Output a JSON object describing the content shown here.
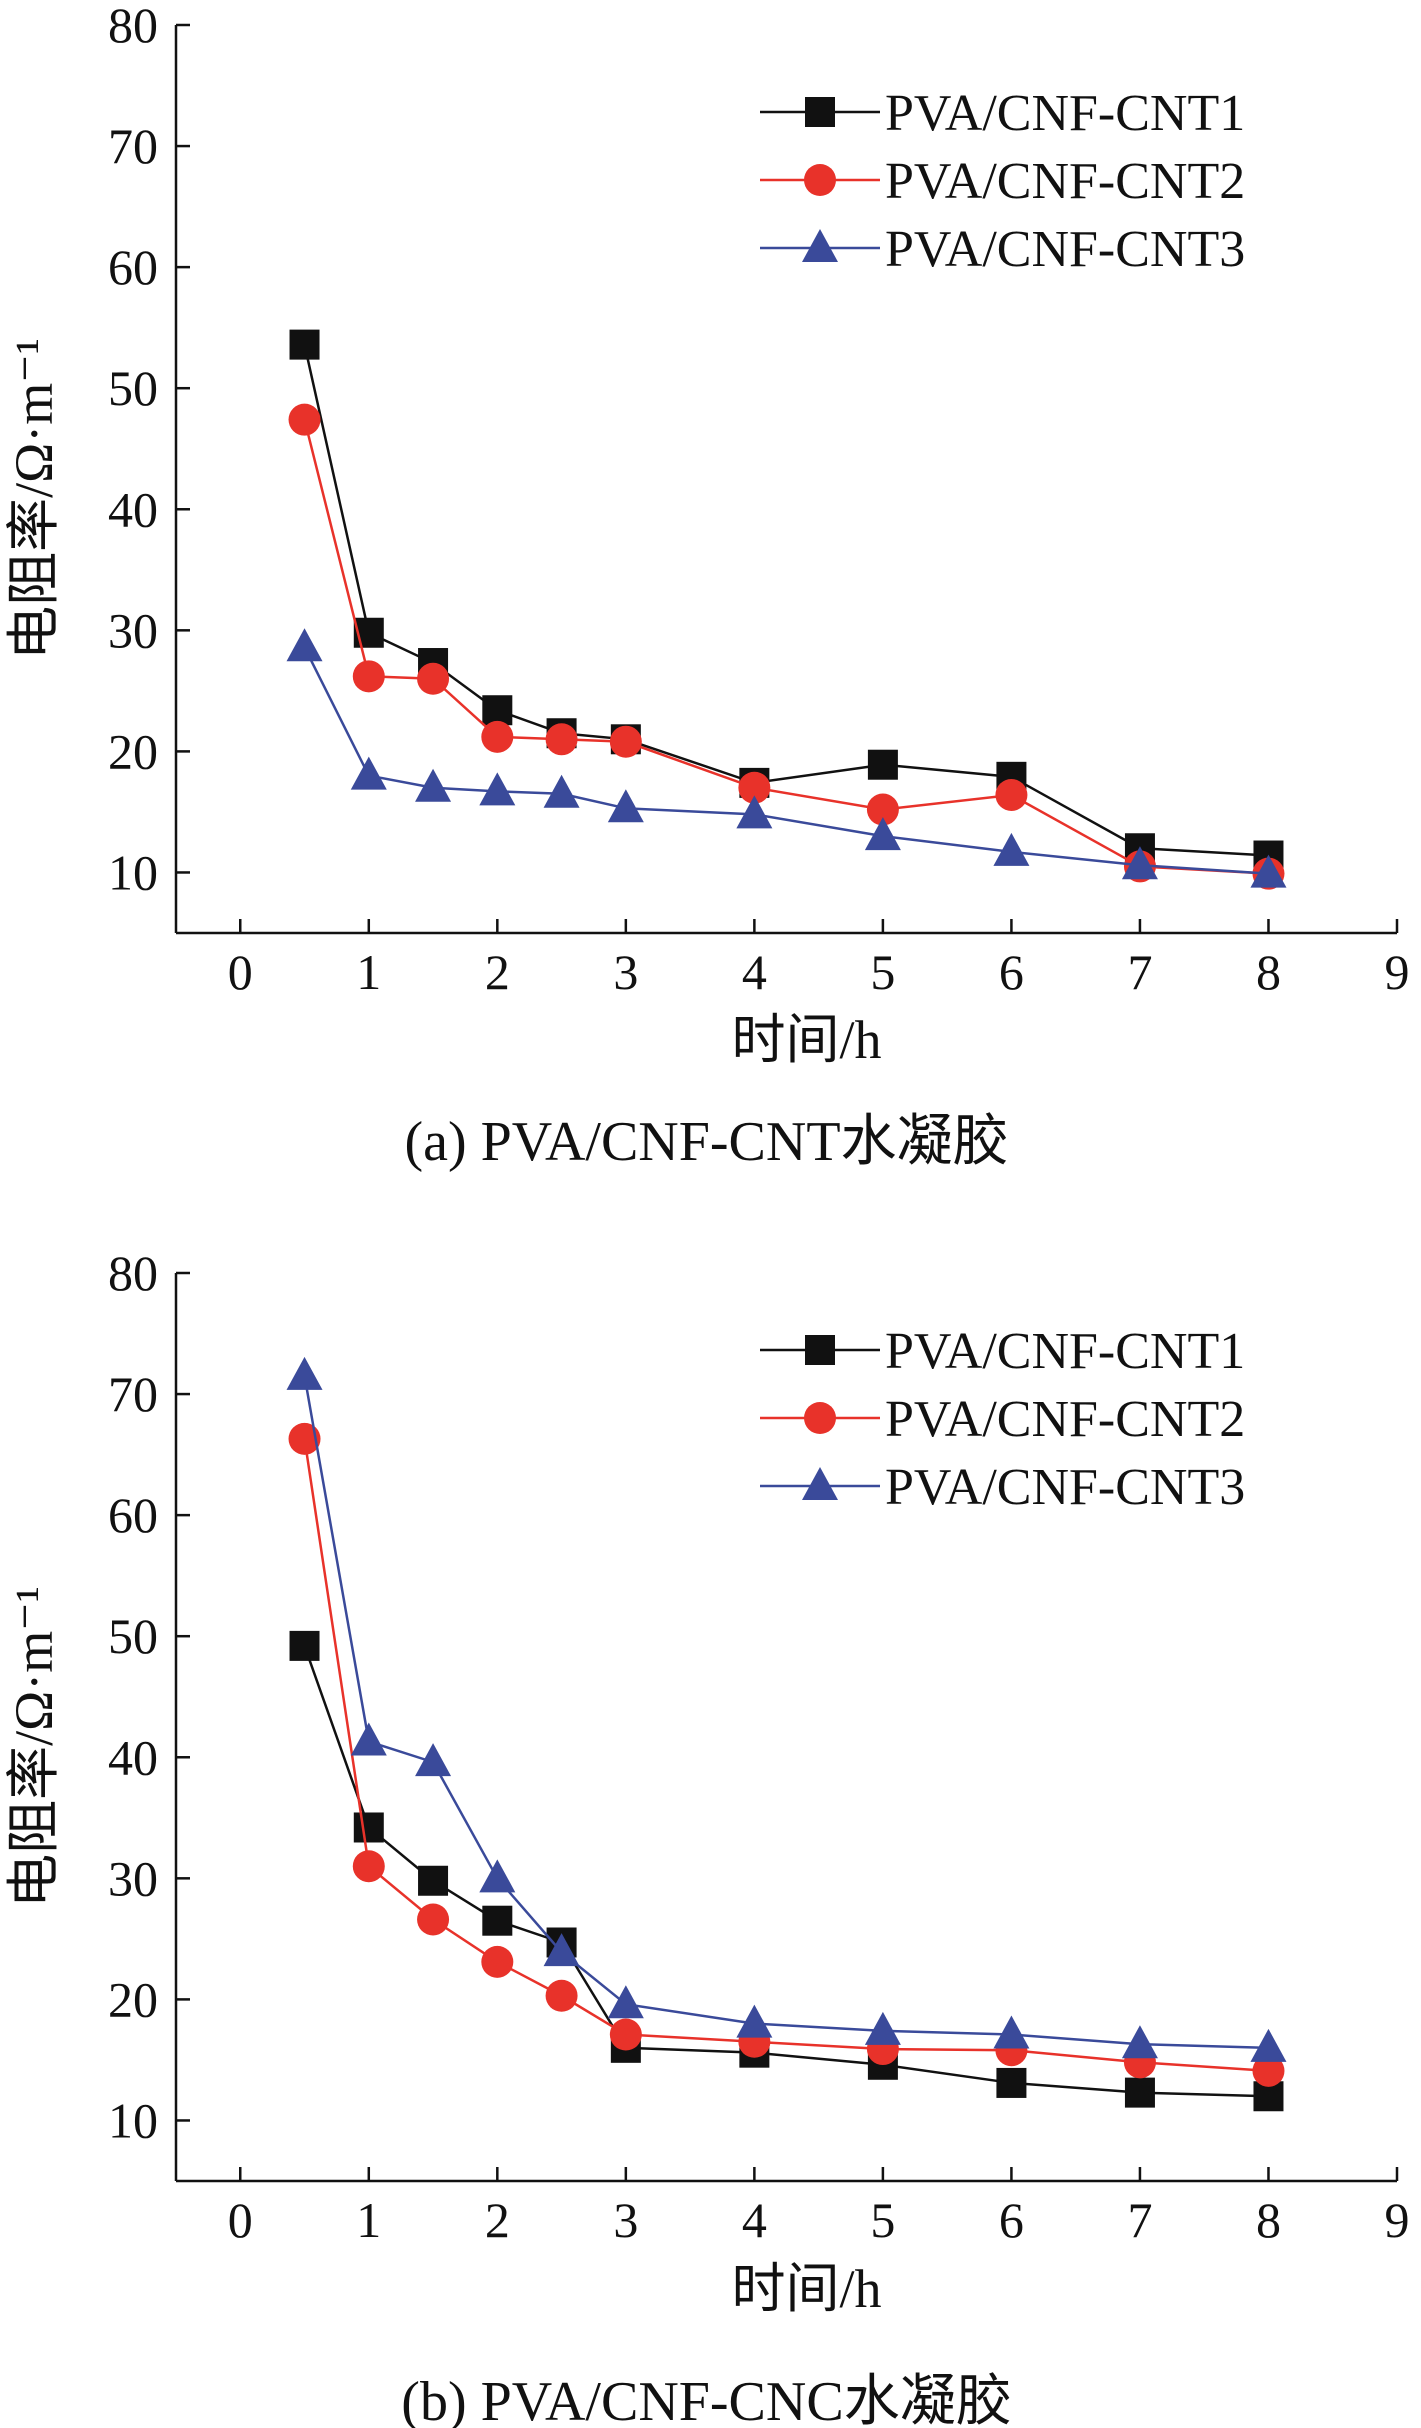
{
  "colors": {
    "series1": "#111111",
    "series2": "#e8322a",
    "series3": "#3a4a9a",
    "axis": "#111111"
  },
  "chart_data": [
    {
      "type": "line",
      "caption": "(a) PVA/CNF-CNT水凝胶",
      "xlabel": "时间/h",
      "ylabel": "电阻率/Ω·m⁻¹",
      "xlim": [
        -0.5,
        9
      ],
      "ylim": [
        5,
        80
      ],
      "xticks": [
        0,
        1,
        2,
        3,
        4,
        5,
        6,
        7,
        8,
        9
      ],
      "yticks": [
        10,
        20,
        30,
        40,
        50,
        60,
        70,
        80
      ],
      "legend_position": "top-right",
      "series": [
        {
          "name": "PVA/CNF-CNT1",
          "marker": "square",
          "x": [
            0.5,
            1,
            1.5,
            2,
            2.5,
            3,
            4,
            5,
            6,
            7,
            8
          ],
          "y": [
            53.6,
            29.8,
            27.3,
            23.4,
            21.5,
            21.0,
            17.4,
            18.9,
            17.9,
            12.0,
            11.4
          ]
        },
        {
          "name": "PVA/CNF-CNT2",
          "marker": "circle",
          "x": [
            0.5,
            1,
            1.5,
            2,
            2.5,
            3,
            4,
            5,
            6,
            7,
            8
          ],
          "y": [
            47.4,
            26.2,
            26.0,
            21.2,
            21.0,
            20.8,
            17.0,
            15.2,
            16.4,
            10.5,
            9.9
          ]
        },
        {
          "name": "PVA/CNF-CNT3",
          "marker": "triangle",
          "x": [
            0.5,
            1,
            1.5,
            2,
            2.5,
            3,
            4,
            5,
            6,
            7,
            8
          ],
          "y": [
            28.6,
            18.0,
            17.0,
            16.7,
            16.5,
            15.3,
            14.8,
            13.0,
            11.7,
            10.6,
            9.9
          ]
        }
      ]
    },
    {
      "type": "line",
      "caption": "(b) PVA/CNF-CNC水凝胶",
      "xlabel": "时间/h",
      "ylabel": "电阻率/Ω·m⁻¹",
      "xlim": [
        -0.5,
        9
      ],
      "ylim": [
        5,
        80
      ],
      "xticks": [
        0,
        1,
        2,
        3,
        4,
        5,
        6,
        7,
        8,
        9
      ],
      "yticks": [
        10,
        20,
        30,
        40,
        50,
        60,
        70,
        80
      ],
      "legend_position": "top-right",
      "series": [
        {
          "name": "PVA/CNF-CNT1",
          "marker": "square",
          "x": [
            0.5,
            1,
            1.5,
            2,
            2.5,
            3,
            4,
            5,
            6,
            7,
            8
          ],
          "y": [
            49.2,
            34.2,
            29.8,
            26.5,
            24.7,
            16.0,
            15.6,
            14.6,
            13.1,
            12.3,
            12.0
          ]
        },
        {
          "name": "PVA/CNF-CNT2",
          "marker": "circle",
          "x": [
            0.5,
            1,
            1.5,
            2,
            2.5,
            3,
            4,
            5,
            6,
            7,
            8
          ],
          "y": [
            66.3,
            31.0,
            26.6,
            23.1,
            20.3,
            17.1,
            16.5,
            15.9,
            15.8,
            14.8,
            14.1
          ]
        },
        {
          "name": "PVA/CNF-CNT3",
          "marker": "triangle",
          "x": [
            0.5,
            1,
            1.5,
            2,
            2.5,
            3,
            4,
            5,
            6,
            7,
            8
          ],
          "y": [
            71.5,
            41.3,
            39.6,
            30.0,
            23.9,
            19.6,
            18.0,
            17.4,
            17.1,
            16.3,
            16.0
          ]
        }
      ]
    }
  ]
}
